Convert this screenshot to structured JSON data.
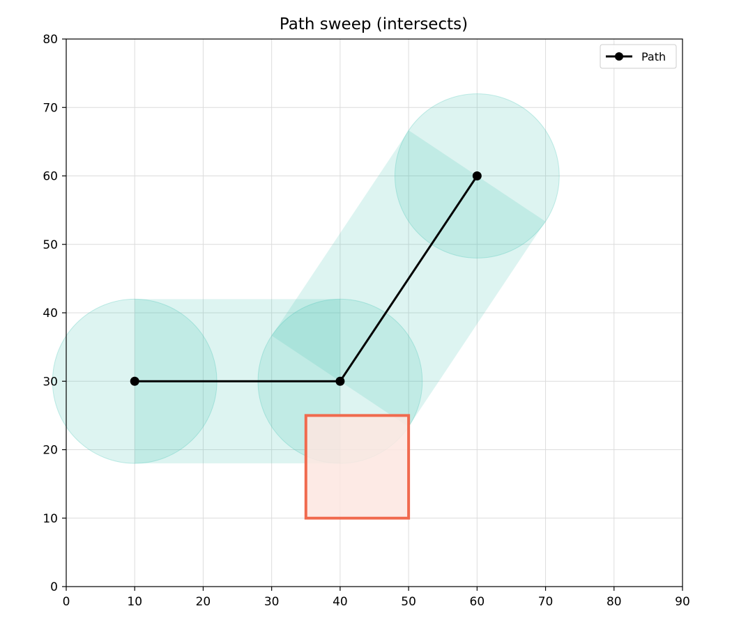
{
  "chart_data": {
    "type": "line",
    "title": "Path sweep (intersects)",
    "xlabel": "",
    "ylabel": "",
    "xlim": [
      0,
      90
    ],
    "ylim": [
      0,
      80
    ],
    "x_ticks": [
      0,
      10,
      20,
      30,
      40,
      50,
      60,
      70,
      80,
      90
    ],
    "y_ticks": [
      0,
      10,
      20,
      30,
      40,
      50,
      60,
      70,
      80
    ],
    "grid": true,
    "legend": {
      "placement": "top-right",
      "entries": [
        "Path"
      ]
    },
    "series": [
      {
        "name": "Path",
        "color": "#000000",
        "marker": "circle",
        "points": [
          {
            "x": 10,
            "y": 30
          },
          {
            "x": 40,
            "y": 30
          },
          {
            "x": 60,
            "y": 60
          }
        ]
      }
    ],
    "sweep": {
      "radius": 12,
      "fill_color": "#40c4b4",
      "fill_opacity": 0.18
    },
    "obstacle": {
      "shape": "rectangle",
      "x_range": [
        35,
        50
      ],
      "y_range": [
        10,
        25
      ],
      "edge_color": "#f06a4e",
      "fill_color": "#fde6e1"
    },
    "colors": {
      "grid": "#dcdcdc",
      "axis": "#000000"
    }
  }
}
